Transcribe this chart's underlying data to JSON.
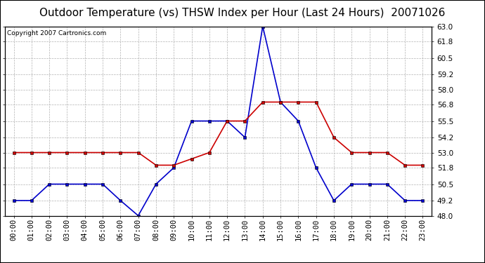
{
  "title": "Outdoor Temperature (vs) THSW Index per Hour (Last 24 Hours)  20071026",
  "copyright": "Copyright 2007 Cartronics.com",
  "x_labels": [
    "00:00",
    "01:00",
    "02:00",
    "03:00",
    "04:00",
    "05:00",
    "06:00",
    "07:00",
    "08:00",
    "09:00",
    "10:00",
    "11:00",
    "12:00",
    "13:00",
    "14:00",
    "15:00",
    "16:00",
    "17:00",
    "18:00",
    "19:00",
    "20:00",
    "21:00",
    "22:00",
    "23:00"
  ],
  "blue_data": [
    49.2,
    49.2,
    50.5,
    50.5,
    50.5,
    50.5,
    49.2,
    48.0,
    50.5,
    51.8,
    55.5,
    55.5,
    55.5,
    54.2,
    63.0,
    57.0,
    55.5,
    51.8,
    49.2,
    50.5,
    50.5,
    50.5,
    49.2,
    49.2
  ],
  "red_data": [
    53.0,
    53.0,
    53.0,
    53.0,
    53.0,
    53.0,
    53.0,
    53.0,
    52.0,
    52.0,
    52.5,
    53.0,
    55.5,
    55.5,
    57.0,
    57.0,
    57.0,
    57.0,
    54.2,
    53.0,
    53.0,
    53.0,
    52.0,
    52.0
  ],
  "blue_color": "#0000cc",
  "red_color": "#cc0000",
  "bg_color": "#ffffff",
  "grid_color": "#aaaaaa",
  "ylim_min": 48.0,
  "ylim_max": 63.0,
  "yticks": [
    48.0,
    49.2,
    50.5,
    51.8,
    53.0,
    54.2,
    55.5,
    56.8,
    58.0,
    59.2,
    60.5,
    61.8,
    63.0
  ],
  "marker": "s",
  "marker_size": 2.5,
  "linewidth": 1.2,
  "title_fontsize": 11,
  "tick_fontsize": 7.5,
  "copyright_fontsize": 6.5
}
